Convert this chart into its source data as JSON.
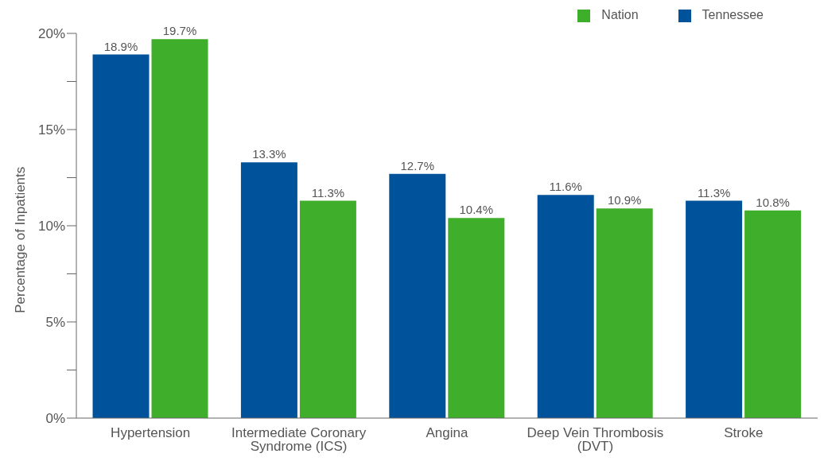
{
  "chart_data": {
    "type": "bar",
    "ylabel": "Percentage of Inpatients",
    "categories": [
      "Hypertension",
      "Intermediate Coronary Syndrome (ICS)",
      "Angina",
      "Deep Vein Thrombosis (DVT)",
      "Stroke"
    ],
    "series": [
      {
        "name": "Tennessee",
        "color": "#00529b",
        "values": [
          18.9,
          13.3,
          12.7,
          11.6,
          11.3
        ],
        "value_labels": [
          "18.9%",
          "13.3%",
          "12.7%",
          "11.6%",
          "11.3%"
        ]
      },
      {
        "name": "Nation",
        "color": "#3fae2a",
        "values": [
          19.7,
          11.3,
          10.4,
          10.9,
          10.8
        ],
        "value_labels": [
          "19.7%",
          "11.3%",
          "10.4%",
          "10.9%",
          "10.8%"
        ]
      }
    ],
    "ylim": [
      0,
      20
    ],
    "yticks": [
      {
        "value": 0,
        "label": "0%"
      },
      {
        "value": 2.5,
        "label": null
      },
      {
        "value": 5,
        "label": "5%"
      },
      {
        "value": 7.5,
        "label": null
      },
      {
        "value": 10,
        "label": "10%"
      },
      {
        "value": 12.5,
        "label": null
      },
      {
        "value": 15,
        "label": "15%"
      },
      {
        "value": 17.5,
        "label": null
      },
      {
        "value": 20,
        "label": "20%"
      }
    ],
    "grid": false,
    "legend": "top right"
  }
}
